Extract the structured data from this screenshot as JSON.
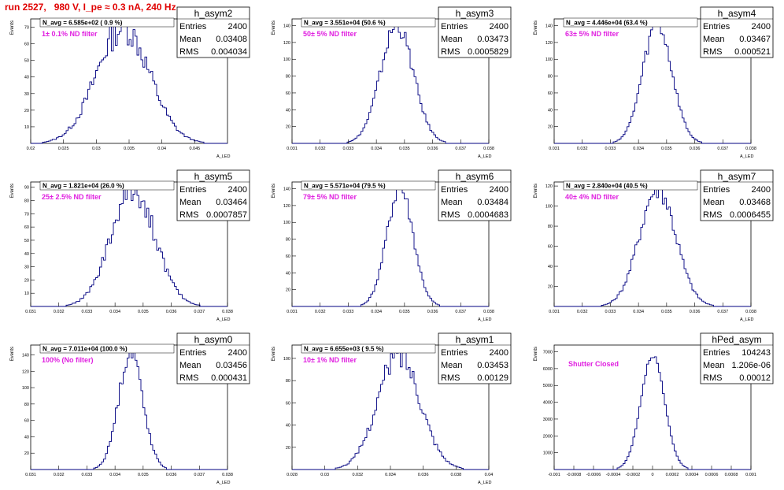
{
  "title": "run 2527,   980 V, I_pe ≈ 0.3 nA, 240 Hz",
  "colors": {
    "title": "#e00000",
    "histogram": "#000080",
    "filter_label": "#e020e0",
    "frame": "#000000"
  },
  "chart_data": [
    {
      "type": "histogram",
      "name": "h_asym2",
      "stats": {
        "Entries": "2400",
        "Mean": "0.03408",
        "RMS": "0.004034"
      },
      "n_avg": "N_avg = 6.585e+02 ( 0.9 %)",
      "filter": "1± 0.1% ND filter",
      "xlim": [
        0.02,
        0.05
      ],
      "ylim": [
        0,
        75
      ],
      "mean": 0.03408,
      "rms": 0.004034,
      "peak": 70,
      "noise": 0.14,
      "xticks": [
        0.02,
        0.025,
        0.03,
        0.035,
        0.04,
        0.045
      ],
      "xtick_labels": [
        "0.02",
        "0.025",
        "0.03",
        "0.035",
        "0.04",
        "0.045"
      ],
      "yticks": [
        10,
        20,
        30,
        40,
        50,
        60,
        70
      ],
      "ytick_labels": [
        "10",
        "20",
        "30",
        "40",
        "50",
        "60",
        "70"
      ],
      "xlabel": "A_LED",
      "ylabel": "Events"
    },
    {
      "type": "histogram",
      "name": "h_asym3",
      "stats": {
        "Entries": "2400",
        "Mean": "0.03473",
        "RMS": "0.0005829"
      },
      "n_avg": "N_avg = 3.551e+04 (50.6 %)",
      "filter": "50± 5% ND filter",
      "xlim": [
        0.031,
        0.038
      ],
      "ylim": [
        0,
        148
      ],
      "mean": 0.03473,
      "rms": 0.0005829,
      "peak": 140,
      "noise": 0.08,
      "xticks": [
        0.031,
        0.032,
        0.033,
        0.034,
        0.035,
        0.036,
        0.037,
        0.038
      ],
      "xtick_labels": [
        "0.031",
        "0.032",
        "0.033",
        "0.034",
        "0.035",
        "0.036",
        "0.037",
        "0.038"
      ],
      "yticks": [
        20,
        40,
        60,
        80,
        100,
        120,
        140
      ],
      "ytick_labels": [
        "20",
        "40",
        "60",
        "80",
        "100",
        "120",
        "140"
      ],
      "xlabel": "A_LED",
      "ylabel": "Events"
    },
    {
      "type": "histogram",
      "name": "h_asym4",
      "stats": {
        "Entries": "2400",
        "Mean": "0.03467",
        "RMS": "0.000521"
      },
      "n_avg": "N_avg = 4.446e+04 (63.4 %)",
      "filter": "63± 5% ND filter",
      "xlim": [
        0.031,
        0.038
      ],
      "ylim": [
        0,
        148
      ],
      "mean": 0.03467,
      "rms": 0.000521,
      "peak": 140,
      "noise": 0.08,
      "xticks": [
        0.031,
        0.032,
        0.033,
        0.034,
        0.035,
        0.036,
        0.037,
        0.038
      ],
      "xtick_labels": [
        "0.031",
        "0.032",
        "0.033",
        "0.034",
        "0.035",
        "0.036",
        "0.037",
        "0.038"
      ],
      "yticks": [
        20,
        40,
        60,
        80,
        100,
        120,
        140
      ],
      "ytick_labels": [
        "20",
        "40",
        "60",
        "80",
        "100",
        "120",
        "140"
      ],
      "xlabel": "A_LED",
      "ylabel": "Events"
    },
    {
      "type": "histogram",
      "name": "h_asym5",
      "stats": {
        "Entries": "2400",
        "Mean": "0.03464",
        "RMS": "0.0007857"
      },
      "n_avg": "N_avg = 1.821e+04 (26.0 %)",
      "filter": "25± 2.5% ND filter",
      "xlim": [
        0.031,
        0.038
      ],
      "ylim": [
        0,
        94
      ],
      "mean": 0.03464,
      "rms": 0.0007857,
      "peak": 88,
      "noise": 0.12,
      "xticks": [
        0.031,
        0.032,
        0.033,
        0.034,
        0.035,
        0.036,
        0.037,
        0.038
      ],
      "xtick_labels": [
        "0.031",
        "0.032",
        "0.033",
        "0.034",
        "0.035",
        "0.036",
        "0.037",
        "0.038"
      ],
      "yticks": [
        10,
        20,
        30,
        40,
        50,
        60,
        70,
        80,
        90
      ],
      "ytick_labels": [
        "10",
        "20",
        "30",
        "40",
        "50",
        "60",
        "70",
        "80",
        "90"
      ],
      "xlabel": "A_LED",
      "ylabel": "Events"
    },
    {
      "type": "histogram",
      "name": "h_asym6",
      "stats": {
        "Entries": "2400",
        "Mean": "0.03484",
        "RMS": "0.0004683"
      },
      "n_avg": "N_avg = 5.571e+04 (79.5 %)",
      "filter": "79± 5% ND filter",
      "xlim": [
        0.031,
        0.038
      ],
      "ylim": [
        0,
        148
      ],
      "mean": 0.03484,
      "rms": 0.0004683,
      "peak": 140,
      "noise": 0.08,
      "xticks": [
        0.031,
        0.032,
        0.033,
        0.034,
        0.035,
        0.036,
        0.037,
        0.038
      ],
      "xtick_labels": [
        "0.031",
        "0.032",
        "0.033",
        "0.034",
        "0.035",
        "0.036",
        "0.037",
        "0.038"
      ],
      "yticks": [
        20,
        40,
        60,
        80,
        100,
        120,
        140
      ],
      "ytick_labels": [
        "20",
        "40",
        "60",
        "80",
        "100",
        "120",
        "140"
      ],
      "xlabel": "A_LED",
      "ylabel": "Events"
    },
    {
      "type": "histogram",
      "name": "h_asym7",
      "stats": {
        "Entries": "2400",
        "Mean": "0.03468",
        "RMS": "0.0006455"
      },
      "n_avg": "N_avg = 2.840e+04 (40.5 %)",
      "filter": "40± 4% ND filter",
      "xlim": [
        0.031,
        0.038
      ],
      "ylim": [
        0,
        124
      ],
      "mean": 0.03468,
      "rms": 0.0006455,
      "peak": 118,
      "noise": 0.1,
      "xticks": [
        0.031,
        0.032,
        0.033,
        0.034,
        0.035,
        0.036,
        0.037,
        0.038
      ],
      "xtick_labels": [
        "0.031",
        "0.032",
        "0.033",
        "0.034",
        "0.035",
        "0.036",
        "0.037",
        "0.038"
      ],
      "yticks": [
        20,
        40,
        60,
        80,
        100,
        120
      ],
      "ytick_labels": [
        "20",
        "40",
        "60",
        "80",
        "100",
        "120"
      ],
      "xlabel": "A_LED",
      "ylabel": "Events"
    },
    {
      "type": "histogram",
      "name": "h_asym0",
      "stats": {
        "Entries": "2400",
        "Mean": "0.03456",
        "RMS": "0.000431"
      },
      "n_avg": "N_avg = 7.011e+04 (100.0 %)",
      "filter": "100% (No filter)",
      "xlim": [
        0.031,
        0.038
      ],
      "ylim": [
        0,
        152
      ],
      "mean": 0.03456,
      "rms": 0.000431,
      "peak": 145,
      "noise": 0.08,
      "xticks": [
        0.031,
        0.032,
        0.033,
        0.034,
        0.035,
        0.036,
        0.037,
        0.038
      ],
      "xtick_labels": [
        "0.031",
        "0.032",
        "0.033",
        "0.034",
        "0.035",
        "0.036",
        "0.037",
        "0.038"
      ],
      "yticks": [
        20,
        40,
        60,
        80,
        100,
        120,
        140
      ],
      "ytick_labels": [
        "20",
        "40",
        "60",
        "80",
        "100",
        "120",
        "140"
      ],
      "xlabel": "A_LED",
      "ylabel": "Events"
    },
    {
      "type": "histogram",
      "name": "h_asym1",
      "stats": {
        "Entries": "2400",
        "Mean": "0.03453",
        "RMS": "0.00129"
      },
      "n_avg": "N_avg = 6.655e+03 ( 9.5 %)",
      "filter": "10± 1% ND filter",
      "xlim": [
        0.028,
        0.04
      ],
      "ylim": [
        0,
        112
      ],
      "mean": 0.03453,
      "rms": 0.00129,
      "peak": 104,
      "noise": 0.12,
      "xticks": [
        0.028,
        0.03,
        0.032,
        0.034,
        0.036,
        0.038,
        0.04
      ],
      "xtick_labels": [
        "0.028",
        "0.03",
        "0.032",
        "0.034",
        "0.036",
        "0.038",
        "0.04"
      ],
      "yticks": [
        20,
        40,
        60,
        80,
        100
      ],
      "ytick_labels": [
        "20",
        "40",
        "60",
        "80",
        "100"
      ],
      "xlabel": "A_LED",
      "ylabel": "Events"
    },
    {
      "type": "histogram",
      "name": "hPed_asym",
      "stats": {
        "Entries": "104243",
        "Mean": "1.206e-06",
        "RMS": "0.00012"
      },
      "n_avg": "",
      "filter": "Shutter Closed",
      "xlim": [
        -0.001,
        0.001
      ],
      "ylim": [
        0,
        7400
      ],
      "mean": 1.2e-06,
      "rms": 0.00012,
      "peak": 6800,
      "noise": 0.02,
      "xticks": [
        -0.001,
        -0.0008,
        -0.0006,
        -0.0004,
        -0.0002,
        0,
        0.0002,
        0.0004,
        0.0006,
        0.0008,
        0.001
      ],
      "xtick_labels": [
        "-0.001",
        "-0.0008",
        "-0.0006",
        "-0.0004",
        "-0.0002",
        "0",
        "0.0002",
        "0.0004",
        "0.0006",
        "0.0008",
        "0.001"
      ],
      "yticks": [
        1000,
        2000,
        3000,
        4000,
        5000,
        6000,
        7000
      ],
      "ytick_labels": [
        "1000",
        "2000",
        "3000",
        "4000",
        "5000",
        "6000",
        "7000"
      ],
      "xlabel": "",
      "ylabel": "Events"
    }
  ]
}
